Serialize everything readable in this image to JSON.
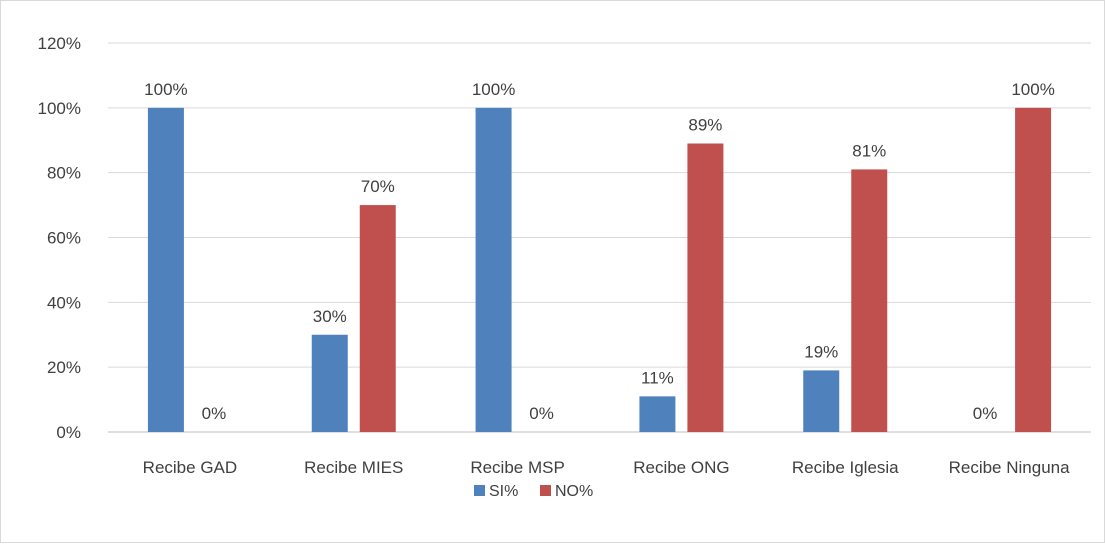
{
  "chart_data": {
    "type": "bar",
    "categories": [
      "Recibe GAD",
      "Recibe MIES",
      "Recibe MSP",
      "Recibe ONG",
      "Recibe Iglesia",
      "Recibe Ninguna"
    ],
    "series": [
      {
        "name": "SI%",
        "color": "#4f81bd",
        "values": [
          100,
          30,
          100,
          11,
          19,
          0
        ],
        "labels": [
          "100%",
          "30%",
          "100%",
          "11%",
          "19%",
          "0%"
        ]
      },
      {
        "name": "NO%",
        "color": "#c0504d",
        "values": [
          0,
          70,
          0,
          89,
          81,
          100
        ],
        "labels": [
          "0%",
          "70%",
          "0%",
          "89%",
          "81%",
          "100%"
        ]
      }
    ],
    "yticks": [
      "0%",
      "20%",
      "40%",
      "60%",
      "80%",
      "100%",
      "120%"
    ],
    "ylim": [
      0,
      120
    ],
    "grid": true,
    "legend_position": "bottom",
    "title": "",
    "xlabel": "",
    "ylabel": ""
  }
}
